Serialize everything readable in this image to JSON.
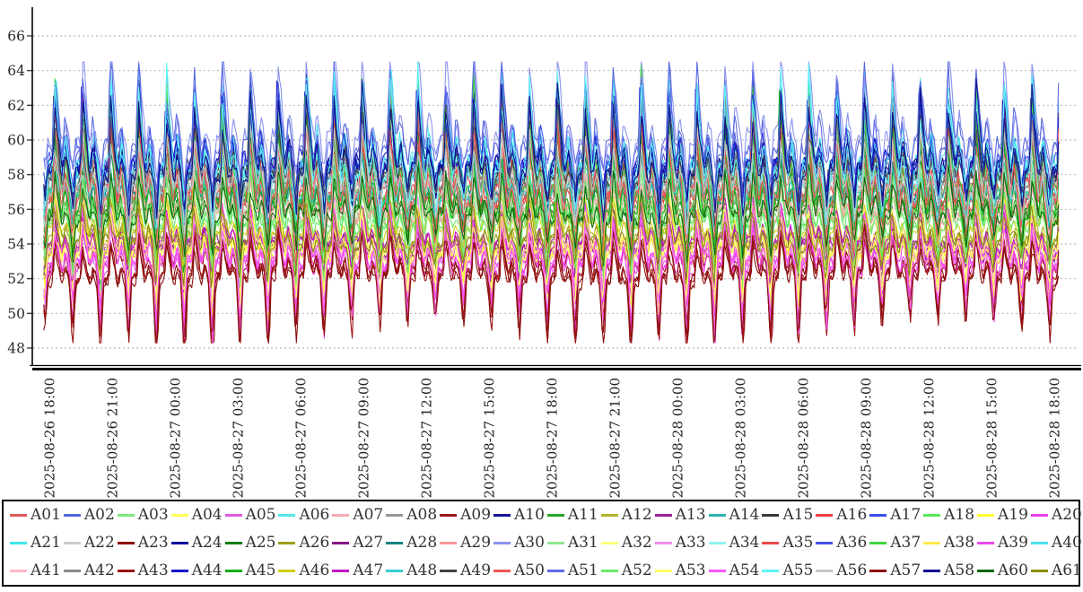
{
  "chart_data": {
    "type": "line",
    "title": "",
    "xlabel": "",
    "ylabel": "",
    "x_axis": {
      "tick_labels": [
        "2025-08-26 18:00",
        "2025-08-26 21:00",
        "2025-08-27 00:00",
        "2025-08-27 03:00",
        "2025-08-27 06:00",
        "2025-08-27 09:00",
        "2025-08-27 12:00",
        "2025-08-27 15:00",
        "2025-08-27 18:00",
        "2025-08-27 21:00",
        "2025-08-28 00:00",
        "2025-08-28 03:00",
        "2025-08-28 06:00",
        "2025-08-28 09:00",
        "2025-08-28 12:00",
        "2025-08-28 15:00",
        "2025-08-28 18:00"
      ],
      "tick_interval": "3 hours",
      "span_minutes": 2880
    },
    "y_axis": {
      "ticks": [
        66,
        64,
        62,
        60,
        58,
        56,
        54,
        52,
        50,
        48
      ],
      "ylim": [
        46.8,
        67.6
      ],
      "grid": "horizontal-dashed"
    },
    "legend_position": "bottom",
    "oscillation_period_minutes": 80,
    "observed_extremes": {
      "max": 64.5,
      "min": 48.3
    },
    "series": [
      {
        "name": "A01",
        "color": "#e05a5a",
        "base": 56.9,
        "peak": 61.0,
        "valley": 53.7,
        "noise": 0.55
      },
      {
        "name": "A02",
        "color": "#5565dd",
        "base": 58.4,
        "peak": 62.5,
        "valley": 56.3,
        "noise": 0.5
      },
      {
        "name": "A03",
        "color": "#7ce87c",
        "base": 55.4,
        "peak": 58.0,
        "valley": 52.7,
        "noise": 0.45
      },
      {
        "name": "A04",
        "color": "#ffff55",
        "base": 53.7,
        "peak": 56.0,
        "valley": 51.0,
        "noise": 0.4
      },
      {
        "name": "A05",
        "color": "#e05ae0",
        "base": 53.0,
        "peak": 55.6,
        "valley": 49.8,
        "noise": 0.45
      },
      {
        "name": "A06",
        "color": "#55e8e8",
        "base": 58.3,
        "peak": 63.0,
        "valley": 55.9,
        "noise": 0.55
      },
      {
        "name": "A07",
        "color": "#f7abb5",
        "base": 55.8,
        "peak": 57.7,
        "valley": 53.9,
        "noise": 0.35
      },
      {
        "name": "A08",
        "color": "#979797",
        "base": 58.2,
        "peak": 62.1,
        "valley": 56.3,
        "noise": 0.45
      },
      {
        "name": "A09",
        "color": "#a31717",
        "base": 52.3,
        "peak": 54.6,
        "valley": 48.6,
        "noise": 0.4
      },
      {
        "name": "A10",
        "color": "#151599",
        "base": 58.7,
        "peak": 62.6,
        "valley": 56.6,
        "noise": 0.5
      },
      {
        "name": "A11",
        "color": "#27a527",
        "base": 56.4,
        "peak": 61.6,
        "valley": 54.1,
        "noise": 0.5
      },
      {
        "name": "A12",
        "color": "#b3b328",
        "base": 54.4,
        "peak": 56.3,
        "valley": 52.7,
        "noise": 0.35
      },
      {
        "name": "A13",
        "color": "#9c1f9c",
        "base": 54.0,
        "peak": 56.1,
        "valley": 52.1,
        "noise": 0.35
      },
      {
        "name": "A14",
        "color": "#2ab5ae",
        "base": 56.9,
        "peak": 59.3,
        "valley": 55.1,
        "noise": 0.4
      },
      {
        "name": "A15",
        "color": "#3a3a3a",
        "base": 58.1,
        "peak": 61.4,
        "valley": 56.5,
        "noise": 0.45
      },
      {
        "name": "A16",
        "color": "#ee3c3c",
        "base": 56.6,
        "peak": 60.8,
        "valley": 53.4,
        "noise": 0.55
      },
      {
        "name": "A17",
        "color": "#3a4deb",
        "base": 58.1,
        "peak": 62.1,
        "valley": 56.0,
        "noise": 0.5
      },
      {
        "name": "A18",
        "color": "#58e858",
        "base": 55.1,
        "peak": 57.7,
        "valley": 52.4,
        "noise": 0.45
      },
      {
        "name": "A19",
        "color": "#ffff30",
        "base": 53.4,
        "peak": 55.7,
        "valley": 50.7,
        "noise": 0.4
      },
      {
        "name": "A20",
        "color": "#f23cf2",
        "base": 52.7,
        "peak": 55.3,
        "valley": 49.5,
        "noise": 0.45
      },
      {
        "name": "A21",
        "color": "#3ce9e9",
        "base": 58.0,
        "peak": 62.6,
        "valley": 55.6,
        "noise": 0.55
      },
      {
        "name": "A22",
        "color": "#cbcbcb",
        "base": 57.4,
        "peak": 60.3,
        "valley": 55.5,
        "noise": 0.4
      },
      {
        "name": "A23",
        "color": "#8f0d0d",
        "base": 52.0,
        "peak": 54.3,
        "valley": 48.4,
        "noise": 0.4
      },
      {
        "name": "A24",
        "color": "#0d0d9c",
        "base": 58.4,
        "peak": 62.3,
        "valley": 56.3,
        "noise": 0.5
      },
      {
        "name": "A25",
        "color": "#0d7e0d",
        "base": 55.9,
        "peak": 58.3,
        "valley": 53.9,
        "noise": 0.4
      },
      {
        "name": "A26",
        "color": "#9c9c15",
        "base": 54.1,
        "peak": 56.0,
        "valley": 52.4,
        "noise": 0.35
      },
      {
        "name": "A27",
        "color": "#851585",
        "base": 53.8,
        "peak": 55.9,
        "valley": 51.9,
        "noise": 0.35
      },
      {
        "name": "A28",
        "color": "#118383",
        "base": 56.6,
        "peak": 59.0,
        "valley": 54.8,
        "noise": 0.4
      },
      {
        "name": "A29",
        "color": "#ff9797",
        "base": 55.5,
        "peak": 57.4,
        "valley": 53.6,
        "noise": 0.35
      },
      {
        "name": "A30",
        "color": "#8b93ee",
        "base": 59.8,
        "peak": 64.3,
        "valley": 58.0,
        "noise": 0.55
      },
      {
        "name": "A31",
        "color": "#90e890",
        "base": 55.6,
        "peak": 58.2,
        "valley": 52.9,
        "noise": 0.45
      },
      {
        "name": "A32",
        "color": "#ffff7c",
        "base": 53.9,
        "peak": 56.2,
        "valley": 51.2,
        "noise": 0.4
      },
      {
        "name": "A33",
        "color": "#ee90ee",
        "base": 53.4,
        "peak": 55.9,
        "valley": 50.6,
        "noise": 0.4
      },
      {
        "name": "A34",
        "color": "#90f2f2",
        "base": 57.6,
        "peak": 61.6,
        "valley": 55.4,
        "noise": 0.45
      },
      {
        "name": "A35",
        "color": "#ea4949",
        "base": 57.0,
        "peak": 61.3,
        "valley": 53.8,
        "noise": 0.55
      },
      {
        "name": "A36",
        "color": "#4354eb",
        "base": 58.5,
        "peak": 62.6,
        "valley": 56.4,
        "noise": 0.5
      },
      {
        "name": "A37",
        "color": "#3cd43c",
        "base": 56.7,
        "peak": 62.4,
        "valley": 54.4,
        "noise": 0.5
      },
      {
        "name": "A38",
        "color": "#ffe94c",
        "base": 53.5,
        "peak": 55.8,
        "valley": 50.8,
        "noise": 0.4
      },
      {
        "name": "A39",
        "color": "#ea49ea",
        "base": 53.1,
        "peak": 55.7,
        "valley": 49.9,
        "noise": 0.45
      },
      {
        "name": "A40",
        "color": "#49e3ee",
        "base": 58.4,
        "peak": 63.1,
        "valley": 56.0,
        "noise": 0.55
      },
      {
        "name": "A41",
        "color": "#ffbac5",
        "base": 55.9,
        "peak": 57.8,
        "valley": 54.0,
        "noise": 0.35
      },
      {
        "name": "A42",
        "color": "#8b8b8b",
        "base": 58.0,
        "peak": 61.8,
        "valley": 56.1,
        "noise": 0.45
      },
      {
        "name": "A43",
        "color": "#9c1212",
        "base": 52.4,
        "peak": 54.7,
        "valley": 48.7,
        "noise": 0.4
      },
      {
        "name": "A44",
        "color": "#1717cd",
        "base": 58.8,
        "peak": 62.7,
        "valley": 56.7,
        "noise": 0.5
      },
      {
        "name": "A45",
        "color": "#15ae15",
        "base": 56.2,
        "peak": 61.2,
        "valley": 54.0,
        "noise": 0.5
      },
      {
        "name": "A46",
        "color": "#d0d015",
        "base": 54.5,
        "peak": 56.4,
        "valley": 52.8,
        "noise": 0.35
      },
      {
        "name": "A47",
        "color": "#c215c2",
        "base": 54.1,
        "peak": 56.2,
        "valley": 52.2,
        "noise": 0.35
      },
      {
        "name": "A48",
        "color": "#38cdcd",
        "base": 57.0,
        "peak": 59.4,
        "valley": 55.2,
        "noise": 0.4
      },
      {
        "name": "A49",
        "color": "#424242",
        "base": 57.9,
        "peak": 61.2,
        "valley": 56.3,
        "noise": 0.45
      },
      {
        "name": "A50",
        "color": "#ec5757",
        "base": 56.7,
        "peak": 61.0,
        "valley": 53.5,
        "noise": 0.55
      },
      {
        "name": "A51",
        "color": "#5c6be1",
        "base": 59.5,
        "peak": 64.0,
        "valley": 57.8,
        "noise": 0.55
      },
      {
        "name": "A52",
        "color": "#6ce96c",
        "base": 55.2,
        "peak": 57.8,
        "valley": 52.5,
        "noise": 0.45
      },
      {
        "name": "A53",
        "color": "#ffff62",
        "base": 53.6,
        "peak": 55.9,
        "valley": 50.9,
        "noise": 0.4
      },
      {
        "name": "A54",
        "color": "#f957f9",
        "base": 52.8,
        "peak": 55.4,
        "valley": 49.6,
        "noise": 0.45
      },
      {
        "name": "A55",
        "color": "#60f5f5",
        "base": 58.1,
        "peak": 62.8,
        "valley": 55.7,
        "noise": 0.55
      },
      {
        "name": "A56",
        "color": "#c5c5c5",
        "base": 57.2,
        "peak": 60.1,
        "valley": 55.3,
        "noise": 0.4
      },
      {
        "name": "A57",
        "color": "#8b1010",
        "base": 52.1,
        "peak": 54.4,
        "valley": 48.5,
        "noise": 0.4
      },
      {
        "name": "A58",
        "color": "#12128b",
        "base": 58.5,
        "peak": 62.4,
        "valley": 56.4,
        "noise": 0.5
      },
      {
        "name": "A60",
        "color": "#0f660f",
        "base": 55.7,
        "peak": 58.1,
        "valley": 53.7,
        "noise": 0.4
      },
      {
        "name": "A61",
        "color": "#8b8b12",
        "base": 54.2,
        "peak": 56.1,
        "valley": 52.5,
        "noise": 0.35
      }
    ]
  },
  "legend": {
    "position": "bottom",
    "rows": 3,
    "entries_per_row": 20
  }
}
